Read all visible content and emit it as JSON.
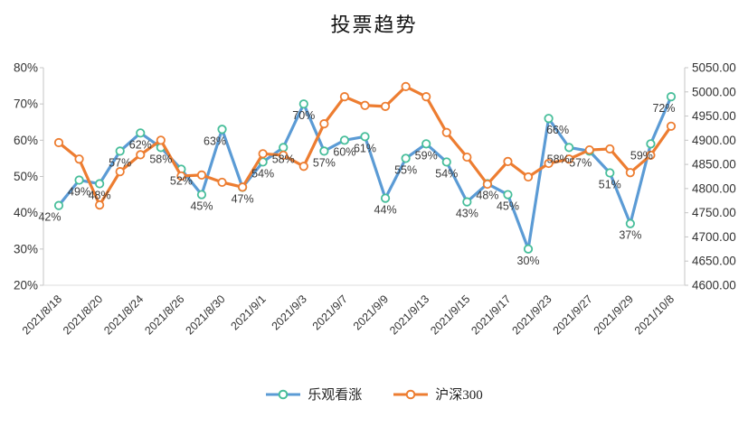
{
  "chart_data": {
    "type": "line",
    "title": "投票趋势",
    "grid": false,
    "legend_position": "bottom",
    "categories": [
      "2021/8/18",
      "",
      "2021/8/20",
      "",
      "2021/8/24",
      "",
      "2021/8/26",
      "",
      "2021/8/30",
      "",
      "2021/9/1",
      "",
      "2021/9/3",
      "",
      "2021/9/7",
      "",
      "2021/9/9",
      "",
      "2021/9/13",
      "",
      "2021/9/15",
      "",
      "2021/9/17",
      "",
      "2021/9/23",
      "",
      "2021/9/27",
      "",
      "2021/9/29",
      "",
      "2021/10/8"
    ],
    "left_axis": {
      "min": 20,
      "max": 80,
      "step": 10,
      "tick_labels": [
        "20%",
        "30%",
        "40%",
        "50%",
        "60%",
        "70%",
        "80%"
      ]
    },
    "right_axis": {
      "min": 4600,
      "max": 5050,
      "step": 50,
      "tick_labels": [
        "4600.00",
        "4650.00",
        "4700.00",
        "4750.00",
        "4800.00",
        "4850.00",
        "4900.00",
        "4950.00",
        "5000.00",
        "5050.00"
      ]
    },
    "series": [
      {
        "name": "乐观看涨",
        "axis": "left",
        "color": "#5B9BD5",
        "marker_color": "#47BE9A",
        "label_suffix": "%",
        "values": [
          42,
          49,
          48,
          57,
          62,
          58,
          52,
          45,
          63,
          47,
          54,
          58,
          70,
          57,
          60,
          61,
          44,
          55,
          59,
          54,
          43,
          48,
          45,
          30,
          66,
          58,
          57,
          51,
          37,
          59,
          72
        ]
      },
      {
        "name": "沪深300",
        "axis": "right",
        "color": "#ED7D31",
        "marker_color": "#ED7D31",
        "values": [
          4895,
          4861,
          4766,
          4835,
          4870,
          4900,
          4826,
          4828,
          4813,
          4803,
          4872,
          4869,
          4846,
          4934,
          4990,
          4972,
          4970,
          5011,
          4990,
          4916,
          4865,
          4809,
          4856,
          4824,
          4852,
          4861,
          4880,
          4882,
          4833,
          4869,
          4929
        ]
      }
    ]
  }
}
